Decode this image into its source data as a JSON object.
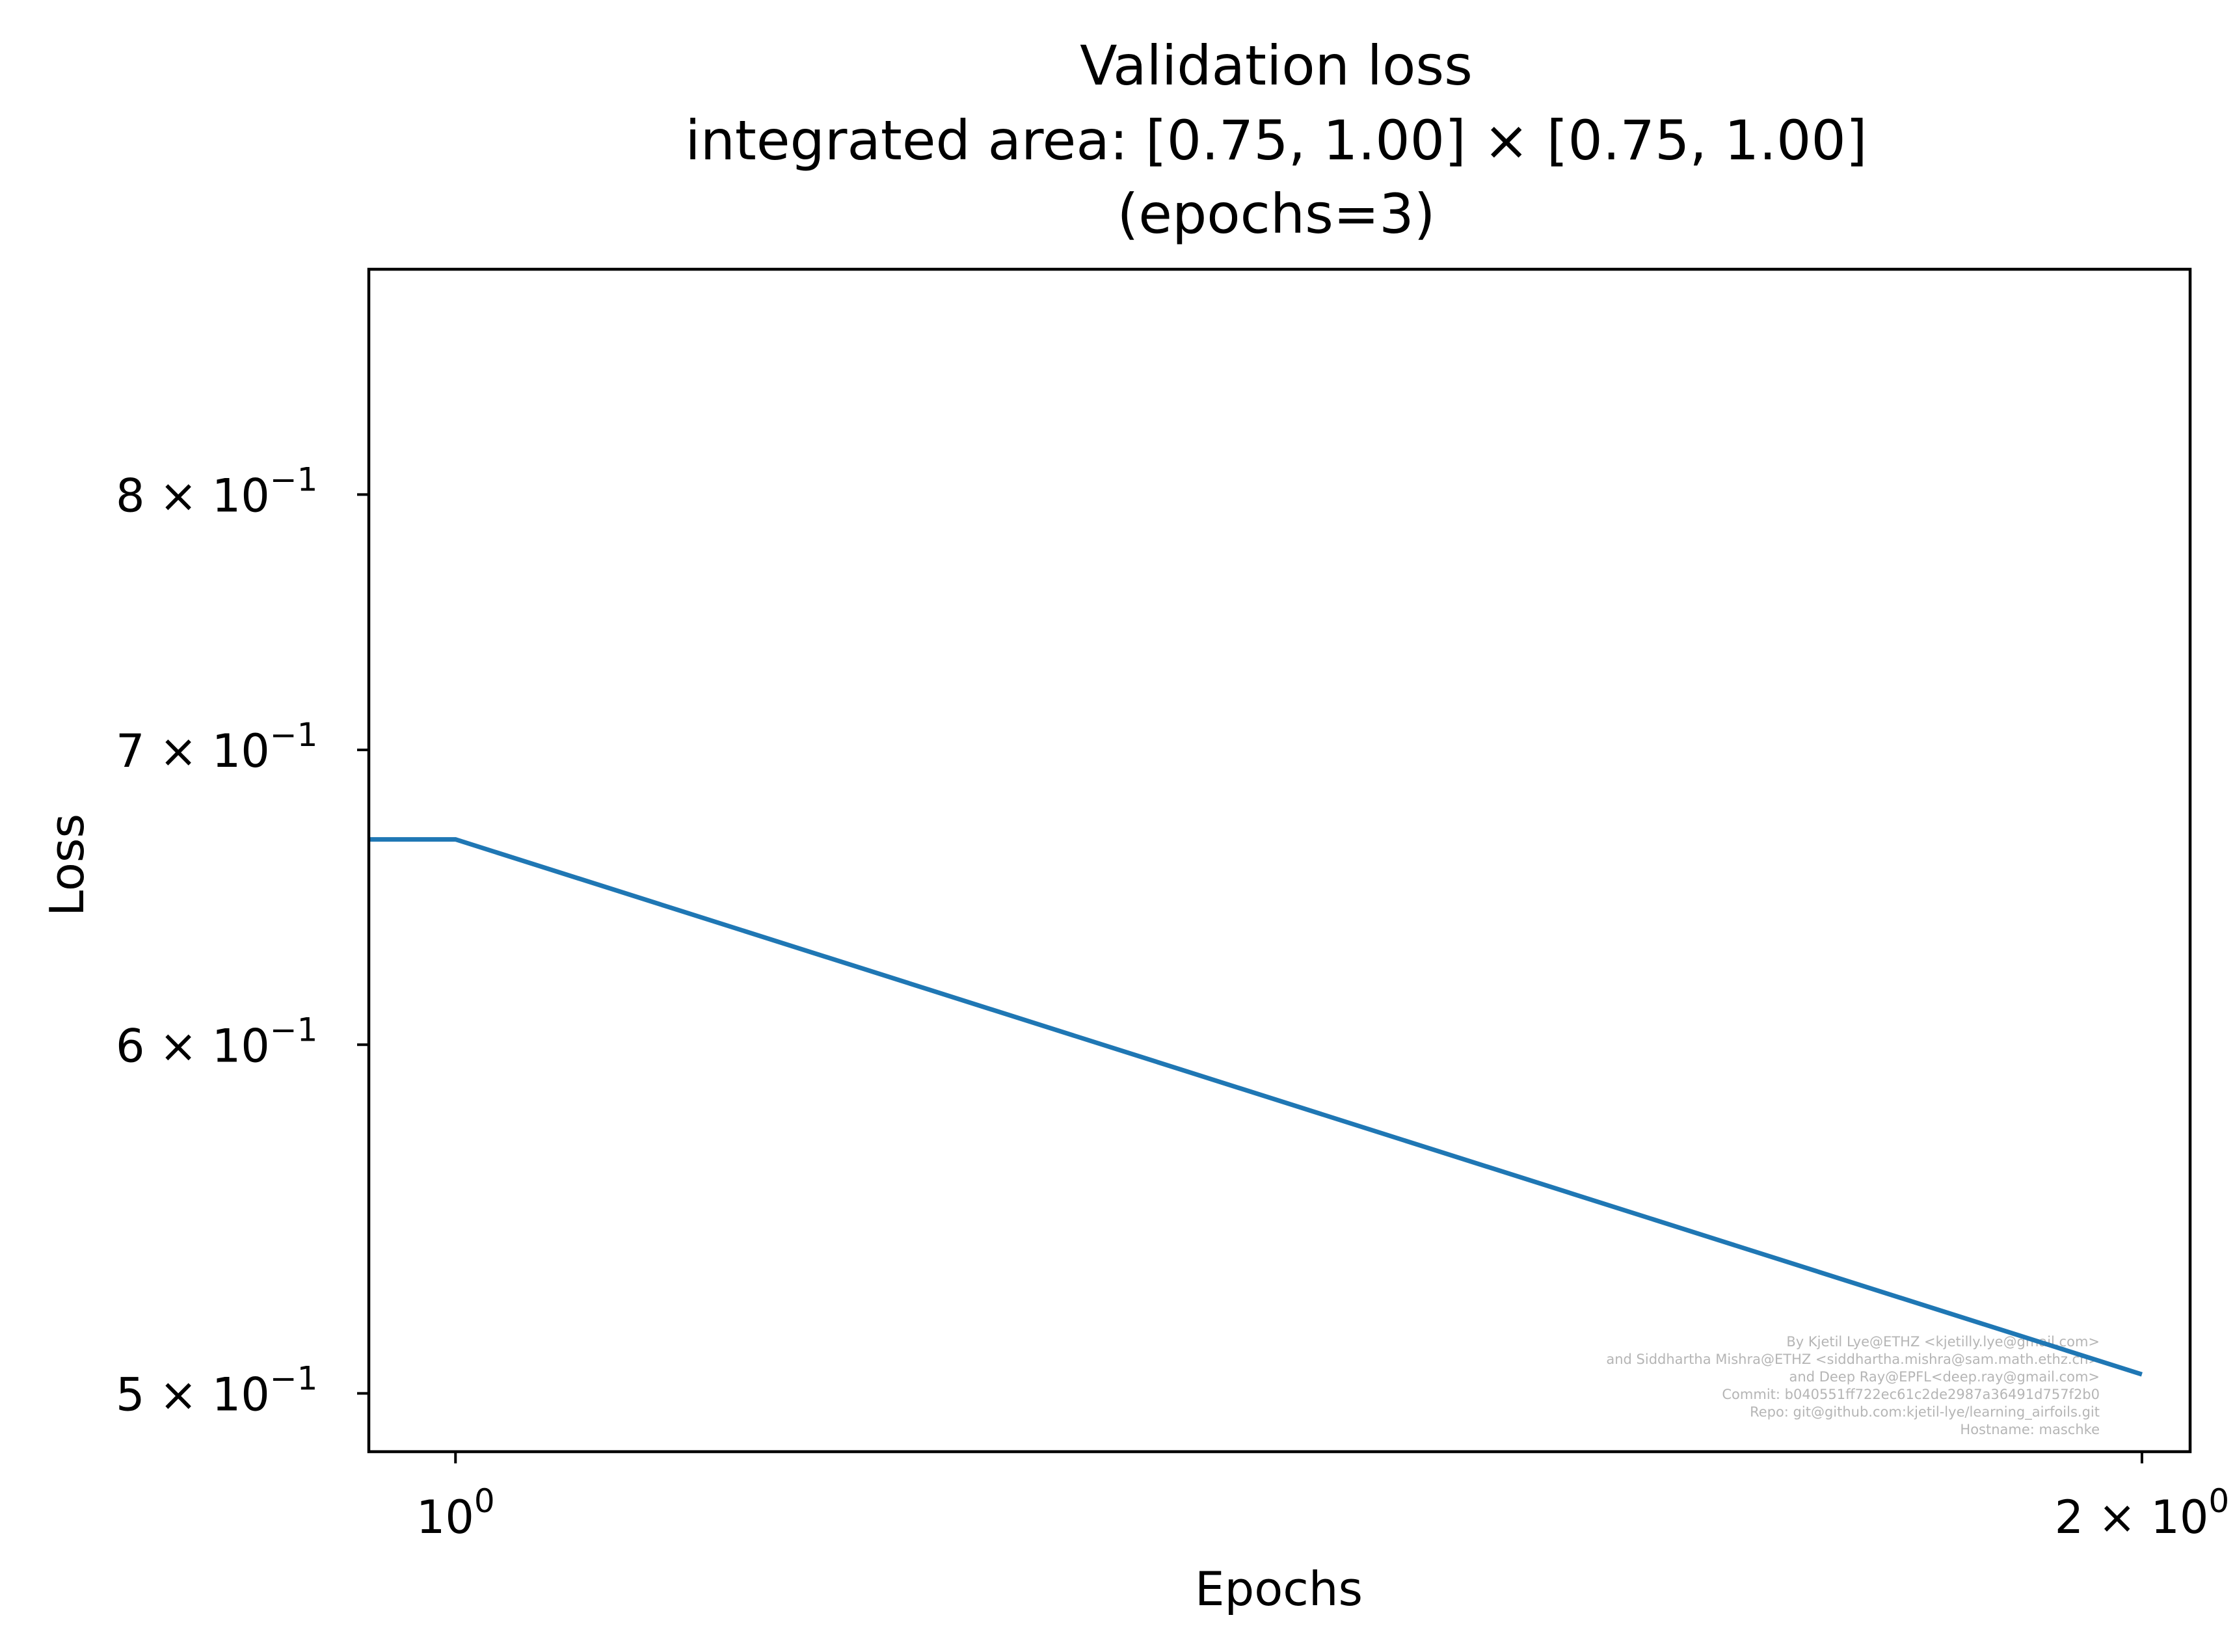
{
  "chart_data": {
    "type": "line",
    "title": [
      "Validation loss",
      "integrated area: [0.75, 1.00] × [0.75, 1.00]",
      "(epochs=3)"
    ],
    "xlabel": "Epochs",
    "ylabel": "Loss",
    "x_scale": "log",
    "y_scale": "log",
    "xlim": [
      0.965,
      2.04
    ],
    "ylim": [
      0.485,
      0.9
    ],
    "grid": false,
    "x_ticks": [
      {
        "value": 1,
        "base": "10",
        "exp": "0"
      },
      {
        "value": 2,
        "base": "2 × 10",
        "exp": "0"
      }
    ],
    "y_ticks": [
      {
        "value": 0.8,
        "base": "8 × 10",
        "exp": "−1"
      },
      {
        "value": 0.7,
        "base": "7 × 10",
        "exp": "−1"
      },
      {
        "value": 0.6,
        "base": "6 × 10",
        "exp": "−1"
      },
      {
        "value": 0.5,
        "base": "5 × 10",
        "exp": "−1"
      }
    ],
    "series": [
      {
        "color": "#1f77b4",
        "x": [
          0,
          1,
          2
        ],
        "y": [
          0.668,
          0.668,
          0.505
        ]
      }
    ],
    "watermark": [
      "By Kjetil Lye@ETHZ <kjetilly.lye@gmail.com>",
      "and Siddhartha Mishra@ETHZ <siddhartha.mishra@sam.math.ethz.ch>",
      "and Deep Ray@EPFL<deep.ray@gmail.com>",
      "Commit: b040551ff722ec61c2de2987a36491d757f2b0",
      "Repo: git@github.com:kjetil-lye/learning_airfoils.git",
      "Hostname: maschke"
    ]
  }
}
